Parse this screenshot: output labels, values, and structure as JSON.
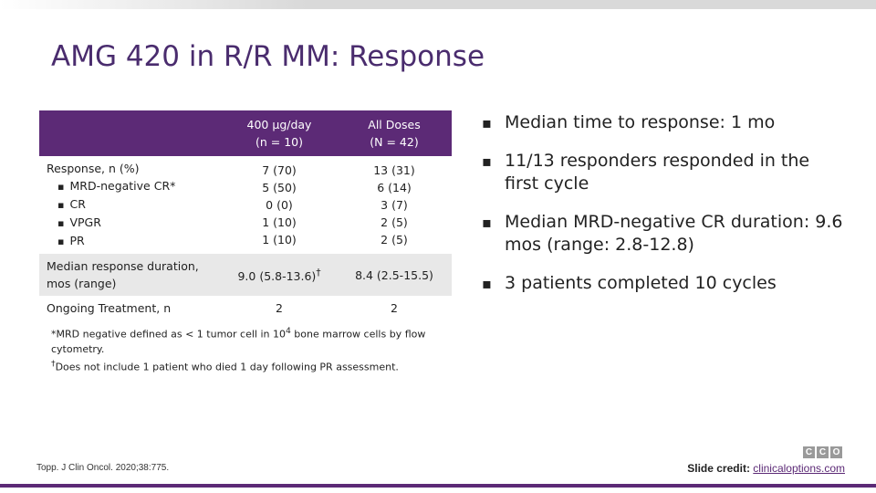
{
  "slide": {
    "title": "AMG 420 in R/R MM: Response"
  },
  "table": {
    "headers": [
      {
        "line1": "",
        "line2": ""
      },
      {
        "line1": "400 µg/day",
        "line2": "(n = 10)"
      },
      {
        "line1": "All Doses",
        "line2": "(N = 42)"
      }
    ],
    "rows": [
      {
        "label_main": "Response, n (%)",
        "label_items": [
          "MRD-negative CR*",
          "CR",
          "VPGR",
          "PR"
        ],
        "col1": [
          "7 (70)",
          "5 (50)",
          "0 (0)",
          "1 (10)",
          "1 (10)"
        ],
        "col2": [
          "13 (31)",
          "6 (14)",
          "3 (7)",
          "2 (5)",
          "2 (5)"
        ]
      },
      {
        "label_line1": "Median response duration,",
        "label_line2": "mos (range)",
        "col1_value": "9.0 (5.8-13.6)",
        "col1_sup": "†",
        "col2_value": "8.4 (2.5-15.5)"
      },
      {
        "label": "Ongoing Treatment, n",
        "col1": "2",
        "col2": "2"
      }
    ]
  },
  "footnotes": {
    "mrd_pre": "*MRD negative defined as < 1 tumor cell in 10",
    "mrd_sup": "4",
    "mrd_post": " bone marrow cells by flow cytometry.",
    "dagger_sym": "†",
    "dagger_text": "Does not include 1 patient who died 1 day following PR assessment."
  },
  "bullets": [
    "Median time to response: 1 mo",
    "11/13 responders responded in the first cycle",
    "Median MRD-negative CR duration: 9.6 mos (range: 2.8-12.8)",
    "3 patients completed 10 cycles"
  ],
  "citation": "Topp. J Clin Oncol. 2020;38:775.",
  "logo_letters": [
    "C",
    "C",
    "O"
  ],
  "credit": {
    "label": "Slide credit:",
    "link": "clinicaloptions.com"
  },
  "colors": {
    "accent": "#5c2a76",
    "title": "#4a2c6e",
    "row_shade": "#e8e8e8"
  }
}
